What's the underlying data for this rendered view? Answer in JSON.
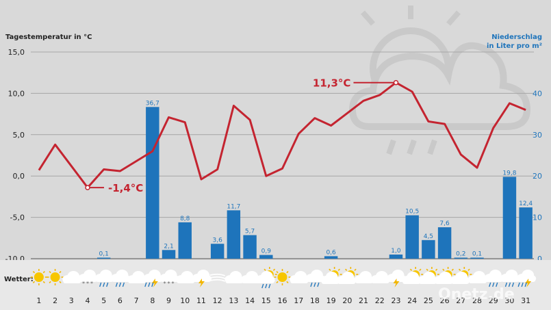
{
  "chart_data": {
    "type": "bar+line",
    "left_axis_title": "Tagestemperatur in °C",
    "right_axis_title_lines": [
      "Niederschlag",
      "in Liter pro m²"
    ],
    "left_ticks": [
      "15,0",
      "10,0",
      "5,0",
      "0,0",
      "-5,0",
      "-10,0"
    ],
    "left_tick_values": [
      15,
      10,
      5,
      0,
      -5,
      -10
    ],
    "right_ticks": [
      "40",
      "30",
      "20",
      "10",
      "0"
    ],
    "right_tick_values": [
      40,
      30,
      20,
      10,
      0
    ],
    "temp_range": [
      -10,
      15
    ],
    "precip_range": [
      0,
      50
    ],
    "days": [
      1,
      2,
      3,
      4,
      5,
      6,
      7,
      8,
      9,
      10,
      11,
      12,
      13,
      14,
      15,
      16,
      17,
      18,
      19,
      20,
      21,
      22,
      23,
      24,
      25,
      26,
      27,
      28,
      29,
      30,
      31
    ],
    "temperature": [
      0.7,
      3.8,
      1.2,
      -1.4,
      0.8,
      0.6,
      1.8,
      3.0,
      7.1,
      6.5,
      -0.4,
      0.8,
      8.5,
      6.8,
      0.0,
      0.9,
      5.1,
      7.0,
      6.1,
      7.6,
      9.1,
      9.8,
      11.3,
      10.2,
      6.6,
      6.3,
      2.6,
      1.0,
      5.8,
      8.8,
      8.0
    ],
    "precipitation": [
      0,
      0,
      0,
      0,
      0.1,
      0,
      0,
      36.7,
      2.1,
      8.8,
      0,
      3.6,
      11.7,
      5.7,
      0.9,
      0,
      0,
      0,
      0.6,
      0,
      0,
      0,
      1.0,
      10.5,
      4.5,
      7.6,
      0.2,
      0.1,
      0,
      19.8,
      12.4
    ],
    "precip_labels": [
      "",
      "",
      "",
      "",
      "0,1",
      "",
      "",
      "36,7",
      "2,1",
      "8,8",
      "",
      "3,6",
      "11,7",
      "5,7",
      "0,9",
      "",
      "",
      "",
      "0,6",
      "",
      "",
      "",
      "1,0",
      "10,5",
      "4,5",
      "7,6",
      "0,2",
      "0,1",
      "",
      "19,8",
      "12,4"
    ],
    "annotations": [
      {
        "day": 4,
        "value": -1.4,
        "label": "-1,4°C"
      },
      {
        "day": 23,
        "value": 11.3,
        "label": "11,3°C"
      }
    ],
    "weather_label": "Wetter:",
    "weather_icons": [
      "sun-icon",
      "sun-icon",
      "cloud-icon",
      "snow-cloud-icon",
      "rain-cloud-icon",
      "rain-cloud-icon",
      "cloud-icon",
      "thunder-rain-icon",
      "snow-cloud-icon",
      "cloud-icon",
      "thunder-icon",
      "wind-icon",
      "cloud-icon",
      "cloud-icon",
      "sun-cloud-rain-icon",
      "sun-icon",
      "cloud-icon",
      "rain-cloud-icon",
      "sun-cloud-icon",
      "sun-cloud-icon",
      "cloud-icon",
      "cloud-icon",
      "thunder-icon",
      "sun-cloud-icon",
      "sun-cloud-icon",
      "sun-cloud-icon",
      "sun-cloud-icon",
      "cloud-icon",
      "rain-cloud-icon",
      "rain-cloud-icon",
      "thunder-rain-icon"
    ],
    "colors": {
      "temperature": "#c42430",
      "precipitation": "#1e74bb",
      "background": "#d9d9d9"
    }
  },
  "watermark": "Onetz.de"
}
